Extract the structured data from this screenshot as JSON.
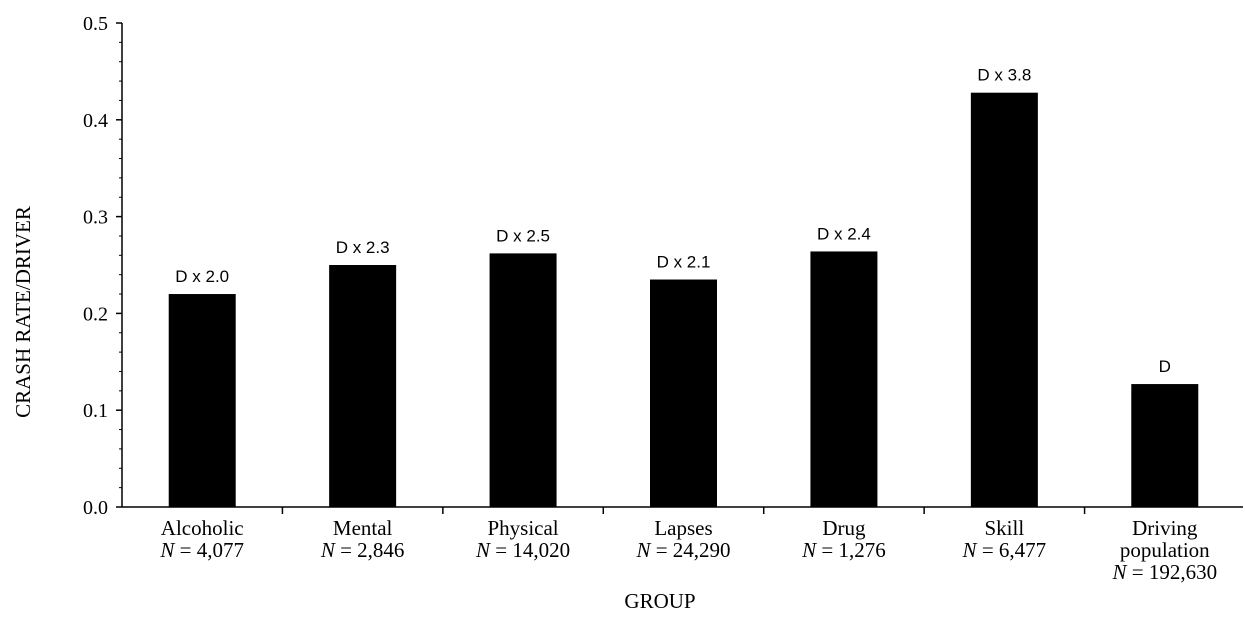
{
  "chart_data": {
    "type": "bar",
    "title": "",
    "xlabel": "GROUP",
    "ylabel": "CRASH RATE/DRIVER",
    "ylim": [
      0,
      0.5
    ],
    "yticks": [
      "0.0",
      "0.1",
      "0.2",
      "0.3",
      "0.4",
      "0.5"
    ],
    "categories": [
      "Alcoholic",
      "Mental",
      "Physical",
      "Lapses",
      "Drug",
      "Skill",
      "Driving population"
    ],
    "category_lines": [
      [
        "Alcoholic"
      ],
      [
        "Mental"
      ],
      [
        "Physical"
      ],
      [
        "Lapses"
      ],
      [
        "Drug"
      ],
      [
        "Skill"
      ],
      [
        "Driving",
        "population"
      ]
    ],
    "n_var": "N",
    "n_values": [
      "4,077",
      "2,846",
      "14,020",
      "24,290",
      "1,276",
      "6,477",
      "192,630"
    ],
    "values": [
      0.22,
      0.25,
      0.262,
      0.235,
      0.264,
      0.428,
      0.127
    ],
    "data_labels": [
      "D x 2.0",
      "D x 2.3",
      "D x 2.5",
      "D x 2.1",
      "D x 2.4",
      "D x 3.8",
      "D"
    ],
    "bar_color": "#000000",
    "grid": false,
    "legend": "none"
  }
}
